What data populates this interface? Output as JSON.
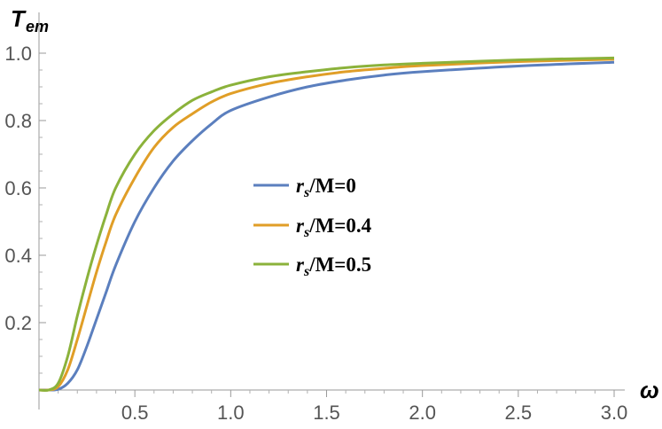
{
  "chart_data": {
    "type": "line",
    "ylabel": {
      "main": "T",
      "sub": "em"
    },
    "xlabel": "ω",
    "xlim": [
      0,
      3.0
    ],
    "ylim": [
      0,
      1.05
    ],
    "x_ticks": [
      0.5,
      1.0,
      1.5,
      2.0,
      2.5,
      3.0
    ],
    "x_tick_labels": [
      "0.5",
      "1.0",
      "1.5",
      "2.0",
      "2.5",
      "3.0"
    ],
    "y_ticks": [
      0.2,
      0.4,
      0.6,
      0.8,
      1.0
    ],
    "y_tick_labels": [
      "0.2",
      "0.4",
      "0.6",
      "0.8",
      "1.0"
    ],
    "grid": false,
    "legend_position": "center-right",
    "x": [
      0.0,
      0.05,
      0.1,
      0.15,
      0.2,
      0.25,
      0.3,
      0.35,
      0.4,
      0.5,
      0.6,
      0.7,
      0.8,
      0.9,
      1.0,
      1.2,
      1.4,
      1.6,
      1.8,
      2.0,
      2.5,
      3.0
    ],
    "series": [
      {
        "name": "r_s/M=0",
        "legend": {
          "r": "r",
          "s": "s",
          "rest": "/M=0"
        },
        "color": "#5b7fbe",
        "values": [
          0.0,
          0.0,
          0.002,
          0.02,
          0.06,
          0.13,
          0.21,
          0.29,
          0.37,
          0.5,
          0.6,
          0.68,
          0.74,
          0.79,
          0.83,
          0.87,
          0.9,
          0.92,
          0.935,
          0.945,
          0.962,
          0.973
        ]
      },
      {
        "name": "r_s/M=0.4",
        "legend": {
          "r": "r",
          "s": "s",
          "rest": "/M=0.4"
        },
        "color": "#e09e27",
        "values": [
          0.0,
          0.0,
          0.01,
          0.06,
          0.15,
          0.25,
          0.35,
          0.44,
          0.52,
          0.63,
          0.72,
          0.78,
          0.82,
          0.855,
          0.88,
          0.91,
          0.93,
          0.945,
          0.955,
          0.963,
          0.975,
          0.982
        ]
      },
      {
        "name": "r_s/M=0.5",
        "legend": {
          "r": "r",
          "s": "s",
          "rest": "/M=0.5"
        },
        "color": "#8bb23b",
        "values": [
          0.0,
          0.0,
          0.02,
          0.1,
          0.22,
          0.33,
          0.43,
          0.52,
          0.6,
          0.7,
          0.77,
          0.82,
          0.86,
          0.885,
          0.905,
          0.93,
          0.945,
          0.957,
          0.965,
          0.97,
          0.98,
          0.986
        ]
      }
    ]
  }
}
